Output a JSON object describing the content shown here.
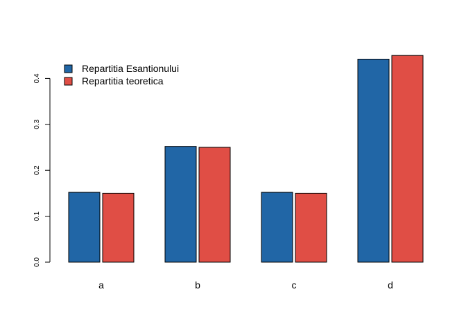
{
  "chart_data": {
    "type": "bar",
    "categories": [
      "a",
      "b",
      "c",
      "d"
    ],
    "series": [
      {
        "name": "Repartitia Esantionului",
        "values": [
          0.152,
          0.252,
          0.152,
          0.442
        ],
        "color": "#2166A6"
      },
      {
        "name": "Repartitia teoretica",
        "values": [
          0.15,
          0.25,
          0.15,
          0.45
        ],
        "color": "#E04E45"
      }
    ],
    "yticks": [
      "0.0",
      "0.1",
      "0.2",
      "0.3",
      "0.4"
    ],
    "ylim": [
      0,
      0.45
    ],
    "grid": false,
    "legend": "top-left",
    "title": "",
    "xlabel": "",
    "ylabel": ""
  }
}
